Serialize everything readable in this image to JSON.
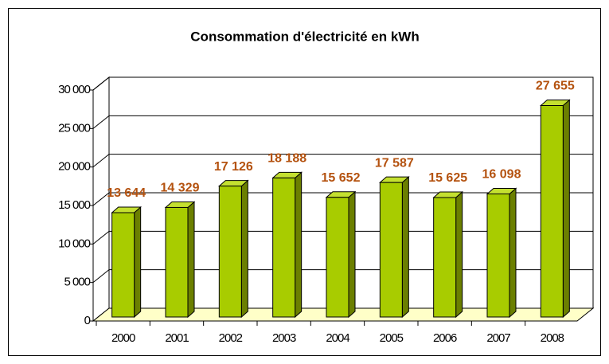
{
  "chart_data": {
    "type": "bar3d",
    "title": "Consommation d'électricité en kWh",
    "categories": [
      "2000",
      "2001",
      "2002",
      "2003",
      "2004",
      "2005",
      "2006",
      "2007",
      "2008"
    ],
    "values": [
      13644,
      14329,
      17126,
      18188,
      15652,
      17587,
      15625,
      16098,
      27655
    ],
    "value_labels": [
      "13 644",
      "14 329",
      "17 126",
      "18 188",
      "15 652",
      "17 587",
      "15 625",
      "16 098",
      "27 655"
    ],
    "color": "#a8cc00",
    "ylim": [
      0,
      30000
    ],
    "yticks": [
      0,
      {
        "value": 5000,
        "label": "5 000"
      },
      {
        "value": 10000,
        "label": "10 000"
      },
      {
        "value": 15000,
        "label": "15 000"
      },
      {
        "value": 20000,
        "label": "20 000"
      },
      {
        "value": 25000,
        "label": "25 000"
      },
      {
        "value": 30000,
        "label": "30 000"
      }
    ],
    "grid": true
  }
}
